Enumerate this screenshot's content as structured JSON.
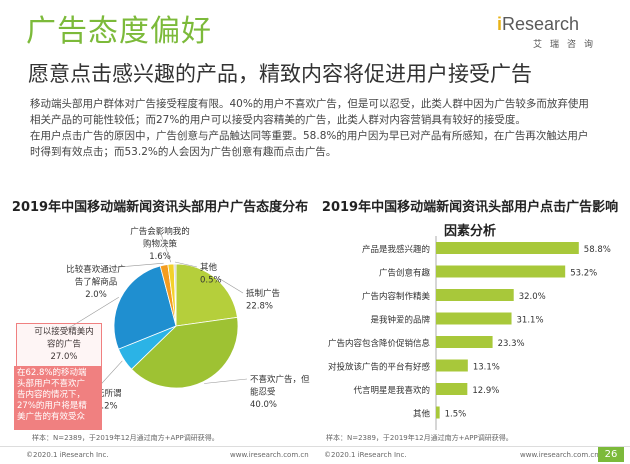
{
  "header": {
    "title": "广告态度偏好",
    "subtitle": "愿意点击感兴趣的产品，精致内容将促进用户接受广告",
    "logo_main": "Research",
    "logo_i": "i",
    "logo_cn": "艾瑞咨询"
  },
  "body": {
    "para1_line1": "移动端头部用户群体对广告接受程度有限。40%的用户不喜欢广告，但是可以忍受，此类人群中因为广告较多而放弃使用",
    "para1_line2": "相关产品的可能性较低；而27%的用户可以接受内容精美的广告，此类人群对内容营销具有较好的接受度。",
    "para2_line1": "在用户点击广告的原因中，广告创意与产品触达同等重要。58.8%的用户因为早已对产品有所感知，在广告再次触达用户",
    "para2_line2": "时得到有效点击；而53.2%的人会因为广告创意有趣而点击广告。"
  },
  "callout": {
    "line1": "在62.8%的移动端",
    "line2": "头部用户不喜欢广",
    "line3": "告内容的情况下，",
    "line4": "27%的用户将是精",
    "line5": "美广告的有效受众"
  },
  "notes": {
    "pie_note": "样本：N=2389，于2019年12月通过南方+APP调研获得。",
    "bar_note": "样本：N=2389，于2019年12月通过南方+APP调研获得。"
  },
  "footer": {
    "copy": "©2020.1 iResearch Inc.",
    "url": "www.iresearch.com.cn",
    "page": "26"
  },
  "colors": {
    "brand_green": "#7cba3a",
    "pie_green": "#a8c83a",
    "pie_blue": "#2aa3dc",
    "pie_orange": "#f6a623",
    "pie_yellow": "#f1d12b",
    "pie_light": "#c9c9c9",
    "callout_red": "#f08080"
  },
  "chart_data": [
    {
      "type": "pie",
      "title": "2019年中国移动端新闻资讯头部用户广告态度分布",
      "slices": [
        {
          "label": "抵制广告",
          "value": 22.8,
          "label_lines": [
            "抵制广告",
            "22.8%"
          ],
          "color": "#a8c83a"
        },
        {
          "label": "不喜欢广告，但能忍受",
          "value": 40.0,
          "label_lines": [
            "不喜欢广告，但",
            "能忍受",
            "40.0%"
          ],
          "color": "#a8c83a"
        },
        {
          "label": "无所谓",
          "value": 6.2,
          "label_lines": [
            "无所谓",
            "6.2%"
          ],
          "color": "#2aa3dc"
        },
        {
          "label": "可以接受精美内容的广告",
          "value": 27.0,
          "label_lines": [
            "可以接受精美内",
            "容的广告",
            "27.0%"
          ],
          "color": "#2aa3dc"
        },
        {
          "label": "比较喜欢通过广告了解商品",
          "value": 2.0,
          "label_lines": [
            "比较喜欢通过广",
            "告了解商品",
            "2.0%"
          ],
          "color": "#f6a623"
        },
        {
          "label": "广告会影响我的购物决策",
          "value": 1.6,
          "label_lines": [
            "广告会影响我的",
            "购物决策",
            "1.6%"
          ],
          "color": "#f1d12b"
        },
        {
          "label": "其他",
          "value": 0.5,
          "label_lines": [
            "其他",
            "0.5%"
          ],
          "color": "#c9c9c9"
        }
      ]
    },
    {
      "type": "bar",
      "title": "2019年中国移动端新闻资讯头部用户点击广告影响因素分析",
      "title_lines": [
        "2019年中国移动端新闻资讯头部用户点击广告影响",
        "因素分析"
      ],
      "categories": [
        "产品是我感兴趣的",
        "广告创意有趣",
        "广告内容制作精美",
        "是我钟爱的品牌",
        "广告内容包含降价促销信息",
        "对投放该广告的平台有好感",
        "代言明星是我喜欢的",
        "其他"
      ],
      "values": [
        58.8,
        53.2,
        32.0,
        31.1,
        23.3,
        13.1,
        12.9,
        1.5
      ],
      "value_labels": [
        "58.8%",
        "53.2%",
        "32.0%",
        "31.1%",
        "23.3%",
        "13.1%",
        "12.9%",
        "1.5%"
      ],
      "xlim": [
        0,
        70
      ],
      "color": "#a8c83a"
    }
  ]
}
